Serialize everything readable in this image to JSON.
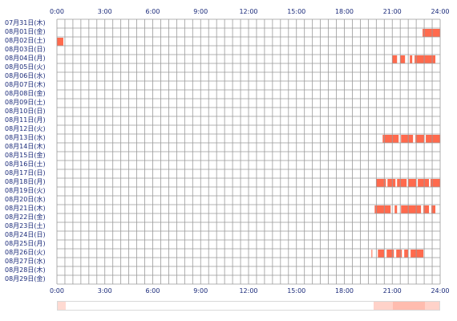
{
  "colors": {
    "grid_line": "#9a9a9a",
    "activity": "#ff6a4d",
    "activity_light": "#ffd8cc",
    "label_text": "#1a2a7a",
    "summary_border": "#d9d9d9"
  },
  "chart_data": {
    "type": "heatmap",
    "title": "",
    "x_tick_labels": [
      "0:00",
      "3:00",
      "6:00",
      "9:00",
      "12:00",
      "15:00",
      "18:00",
      "21:00",
      "24:00"
    ],
    "x_range_hours": [
      0,
      24
    ],
    "grid": true,
    "rows": [
      {
        "label": "07月31日(木)",
        "segments": []
      },
      {
        "label": "08月01日(金)",
        "segments": [
          [
            22.9,
            24.0
          ]
        ]
      },
      {
        "label": "08月02日(土)",
        "segments": [
          [
            0.0,
            0.4
          ]
        ]
      },
      {
        "label": "08月03日(日)",
        "segments": []
      },
      {
        "label": "08月04日(月)",
        "segments": [
          [
            21.0,
            21.3
          ],
          [
            21.5,
            21.8
          ],
          [
            22.1,
            22.25
          ],
          [
            22.4,
            23.7
          ]
        ]
      },
      {
        "label": "08月05日(火)",
        "segments": []
      },
      {
        "label": "08月06日(水)",
        "segments": []
      },
      {
        "label": "08月07日(木)",
        "segments": []
      },
      {
        "label": "08月08日(金)",
        "segments": []
      },
      {
        "label": "08月09日(土)",
        "segments": []
      },
      {
        "label": "08月10日(日)",
        "segments": []
      },
      {
        "label": "08月11日(月)",
        "segments": []
      },
      {
        "label": "08月12日(火)",
        "segments": []
      },
      {
        "label": "08月13日(水)",
        "segments": [
          [
            20.4,
            21.4
          ],
          [
            21.55,
            22.3
          ],
          [
            22.45,
            23.0
          ],
          [
            23.1,
            24.0
          ]
        ]
      },
      {
        "label": "08月14日(木)",
        "segments": []
      },
      {
        "label": "08月15日(金)",
        "segments": []
      },
      {
        "label": "08月16日(土)",
        "segments": []
      },
      {
        "label": "08月17日(日)",
        "segments": []
      },
      {
        "label": "08月18日(月)",
        "segments": [
          [
            20.0,
            20.6
          ],
          [
            20.7,
            21.2
          ],
          [
            21.3,
            21.9
          ],
          [
            22.0,
            22.5
          ],
          [
            22.6,
            23.3
          ],
          [
            23.4,
            24.0
          ]
        ]
      },
      {
        "label": "08月19日(火)",
        "segments": []
      },
      {
        "label": "08月20日(水)",
        "segments": []
      },
      {
        "label": "08月21日(木)",
        "segments": [
          [
            19.9,
            20.9
          ],
          [
            21.15,
            21.3
          ],
          [
            21.55,
            22.8
          ],
          [
            22.95,
            23.3
          ],
          [
            23.45,
            23.7
          ]
        ]
      },
      {
        "label": "08月22日(金)",
        "segments": []
      },
      {
        "label": "08月23日(土)",
        "segments": []
      },
      {
        "label": "08月24日(日)",
        "segments": []
      },
      {
        "label": "08月25日(月)",
        "segments": []
      },
      {
        "label": "08月26日(火)",
        "segments": [
          [
            19.7,
            19.75
          ],
          [
            20.1,
            20.5
          ],
          [
            20.65,
            21.1
          ],
          [
            21.25,
            21.6
          ],
          [
            21.75,
            22.0
          ],
          [
            22.15,
            22.95
          ]
        ]
      },
      {
        "label": "08月27日(水)",
        "segments": []
      },
      {
        "label": "08月28日(木)",
        "segments": []
      },
      {
        "label": "08月29日(金)",
        "segments": []
      }
    ],
    "summary_segments": [
      {
        "range": [
          0.0,
          0.5
        ],
        "level": 0.25
      },
      {
        "range": [
          19.8,
          21.0
        ],
        "level": 0.3
      },
      {
        "range": [
          21.0,
          23.0
        ],
        "level": 0.45
      },
      {
        "range": [
          23.0,
          24.0
        ],
        "level": 0.3
      }
    ]
  }
}
